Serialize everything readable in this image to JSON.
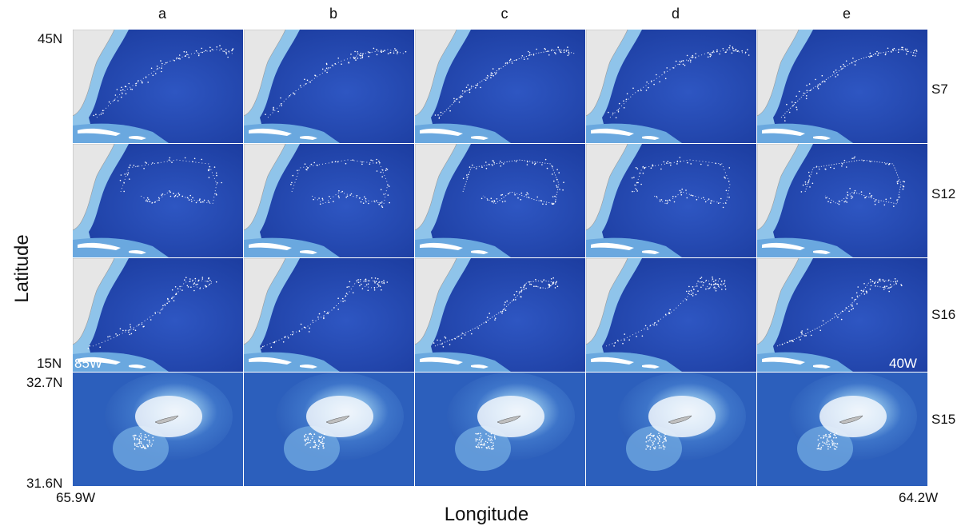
{
  "columns": [
    "a",
    "b",
    "c",
    "d",
    "e"
  ],
  "rows": [
    "S7",
    "S12",
    "S16",
    "S15"
  ],
  "axis": {
    "y_title": "Latitude",
    "x_title": "Longitude"
  },
  "coords": {
    "top_lat_max": "45N",
    "top_lat_min": "15N",
    "top_lon_min": "85W",
    "top_lon_max": "40W",
    "inset_lat_max": "32.7N",
    "inset_lat_min": "31.6N",
    "inset_lon_min": "65.9W",
    "inset_lon_max": "64.2W"
  },
  "colors": {
    "land": "#e6e6e6",
    "deep_ocean": "#1d3fa6",
    "shelf": "#8fc4ea",
    "track": "#ffffff"
  }
}
